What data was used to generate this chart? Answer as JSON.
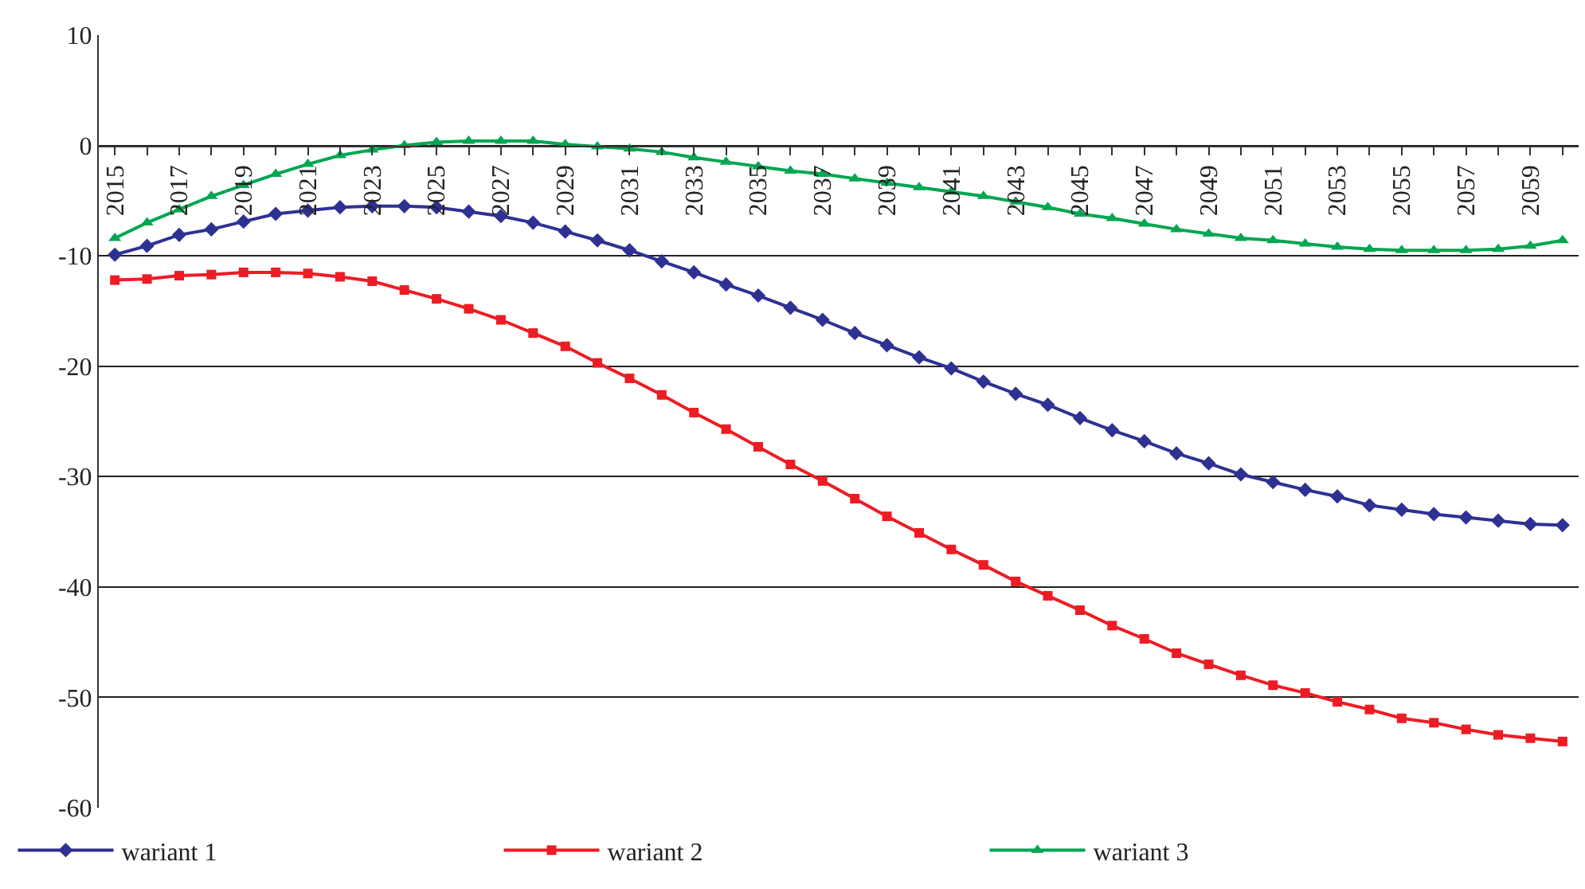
{
  "chart_data": {
    "type": "line",
    "categories": [
      "2015",
      null,
      "2017",
      null,
      "2019",
      null,
      "2021",
      null,
      "2023",
      null,
      "2025",
      null,
      "2027",
      null,
      "2029",
      null,
      "2031",
      null,
      "2033",
      null,
      "2035",
      null,
      "2037",
      null,
      "2039",
      null,
      "2041",
      null,
      "2043",
      null,
      "2045",
      null,
      "2047",
      null,
      "2049",
      null,
      "2051",
      null,
      "2053",
      null,
      "2055",
      null,
      "2057",
      null,
      "2059",
      null
    ],
    "series": [
      {
        "name": "wariant 1",
        "color": "#2e3192",
        "marker": "diamond",
        "values": [
          -9.9,
          -9.1,
          -8.1,
          -7.6,
          -6.9,
          -6.2,
          -5.9,
          -5.6,
          -5.5,
          -5.5,
          -5.6,
          -6.0,
          -6.4,
          -7.0,
          -7.8,
          -8.6,
          -9.5,
          -10.5,
          -11.5,
          -12.6,
          -13.6,
          -14.7,
          -15.8,
          -17.0,
          -18.1,
          -19.2,
          -20.2,
          -21.4,
          -22.5,
          -23.5,
          -24.7,
          -25.8,
          -26.8,
          -27.9,
          -28.8,
          -29.8,
          -30.5,
          -31.2,
          -31.8,
          -32.6,
          -33.0,
          -33.4,
          -33.7,
          -34.0,
          -34.3,
          -34.4
        ]
      },
      {
        "name": "wariant 2",
        "color": "#ed1c24",
        "marker": "square",
        "values": [
          -12.2,
          -12.1,
          -11.8,
          -11.7,
          -11.5,
          -11.5,
          -11.6,
          -11.9,
          -12.3,
          -13.1,
          -13.9,
          -14.8,
          -15.8,
          -17.0,
          -18.2,
          -19.7,
          -21.1,
          -22.6,
          -24.2,
          -25.7,
          -27.3,
          -28.9,
          -30.4,
          -32.0,
          -33.6,
          -35.1,
          -36.6,
          -38.0,
          -39.5,
          -40.8,
          -42.1,
          -43.5,
          -44.7,
          -46.0,
          -47.0,
          -48.0,
          -48.9,
          -49.6,
          -50.4,
          -51.1,
          -51.9,
          -52.3,
          -52.9,
          -53.4,
          -53.7,
          -54.0
        ]
      },
      {
        "name": "wariant 3",
        "color": "#00a651",
        "marker": "triangle",
        "values": [
          -8.4,
          -7.0,
          -5.8,
          -4.6,
          -3.6,
          -2.6,
          -1.7,
          -0.9,
          -0.4,
          0.0,
          0.3,
          0.4,
          0.4,
          0.4,
          0.1,
          -0.1,
          -0.3,
          -0.6,
          -1.1,
          -1.5,
          -1.9,
          -2.3,
          -2.6,
          -3.0,
          -3.4,
          -3.8,
          -4.2,
          -4.6,
          -5.1,
          -5.6,
          -6.2,
          -6.6,
          -7.1,
          -7.6,
          -8.0,
          -8.4,
          -8.6,
          -8.9,
          -9.2,
          -9.4,
          -9.5,
          -9.5,
          -9.5,
          -9.4,
          -9.1,
          -8.6
        ]
      }
    ],
    "ylim": [
      -60,
      10
    ],
    "yticks": [
      -60,
      -50,
      -40,
      -30,
      -20,
      -10,
      0,
      10
    ],
    "grid": "y",
    "legend": "bottom left",
    "line_style": "solid"
  }
}
